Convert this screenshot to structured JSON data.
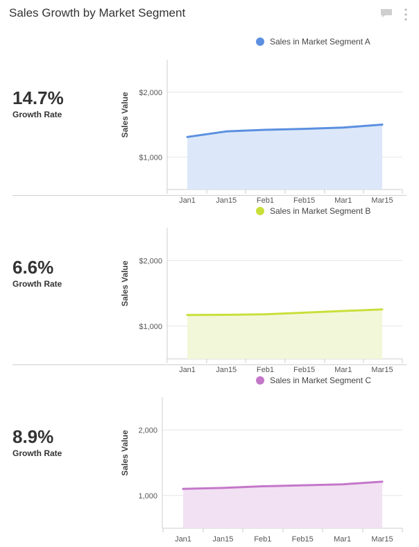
{
  "header": {
    "title": "Sales Growth by Market Segment",
    "comment_icon": "comment-icon",
    "more_icon": "more-vertical-icon"
  },
  "panels": [
    {
      "growth_value": "14.7%",
      "growth_label": "Growth Rate",
      "legend_label": "Sales in Market Segment A",
      "color": "#5b8fe0",
      "fill": "#dce8f9"
    },
    {
      "growth_value": "6.6%",
      "growth_label": "Growth Rate",
      "legend_label": "Sales in Market Segment B",
      "color": "#c9df3b",
      "fill": "#f3f7d9"
    },
    {
      "growth_value": "8.9%",
      "growth_label": "Growth Rate",
      "legend_label": "Sales in Market Segment C",
      "color": "#c477c9",
      "fill": "#f2e1f3"
    }
  ],
  "chart_data": [
    {
      "type": "area",
      "ylabel": "Sales Value",
      "categories": [
        "Jan1",
        "Jan15",
        "Feb1",
        "Feb15",
        "Mar1",
        "Mar15"
      ],
      "yticks": [
        "$2,000",
        "$1,000"
      ],
      "ytick_values": [
        2000,
        1000
      ],
      "ylim": [
        500,
        2500
      ],
      "series": [
        {
          "name": "Sales in Market Segment A",
          "values": [
            1310,
            1395,
            1420,
            1435,
            1455,
            1500
          ]
        }
      ]
    },
    {
      "type": "area",
      "ylabel": "Sales Value",
      "categories": [
        "Jan1",
        "Jan15",
        "Feb1",
        "Feb15",
        "Mar1",
        "Mar15"
      ],
      "yticks": [
        "$2,000",
        "$1,000"
      ],
      "ytick_values": [
        2000,
        1000
      ],
      "ylim": [
        500,
        2500
      ],
      "series": [
        {
          "name": "Sales in Market Segment B",
          "values": [
            1170,
            1172,
            1180,
            1205,
            1230,
            1255
          ]
        }
      ]
    },
    {
      "type": "area",
      "ylabel": "Sales Value",
      "categories": [
        "Jan1",
        "Jan15",
        "Feb1",
        "Feb15",
        "Mar1",
        "Mar15"
      ],
      "yticks": [
        "2,000",
        "1,000"
      ],
      "ytick_values": [
        2000,
        1000
      ],
      "ylim": [
        500,
        2500
      ],
      "series": [
        {
          "name": "Sales in Market Segment C",
          "values": [
            1100,
            1115,
            1140,
            1155,
            1170,
            1210
          ]
        }
      ]
    }
  ]
}
